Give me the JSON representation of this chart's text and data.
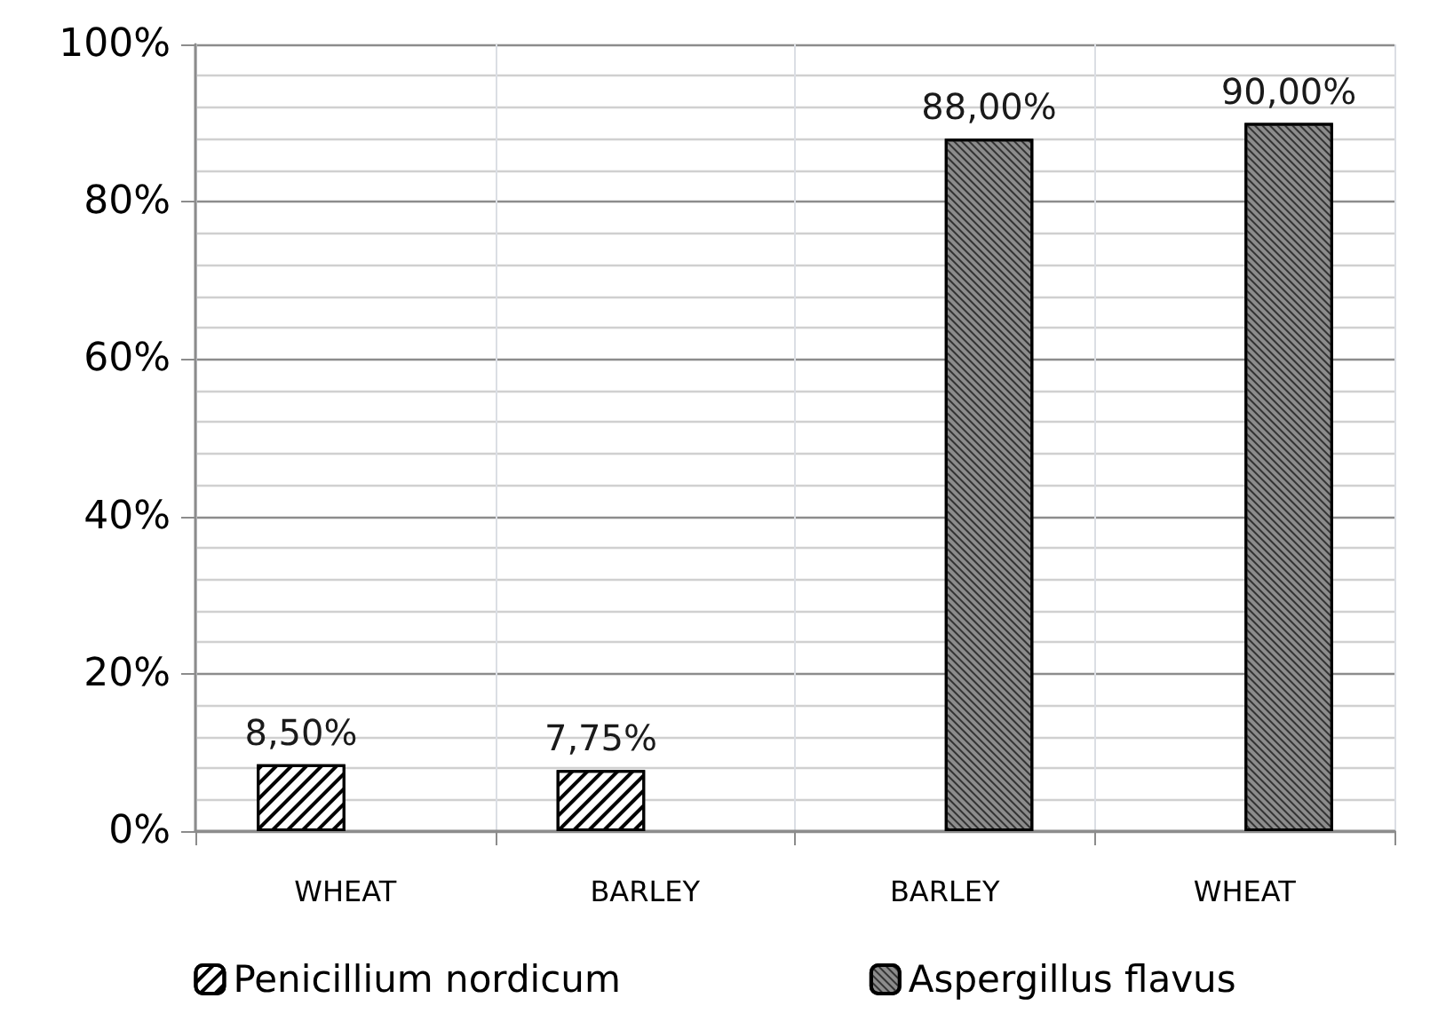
{
  "chart_data": {
    "type": "bar",
    "categories": [
      "WHEAT",
      "BARLEY",
      "BARLEY",
      "WHEAT"
    ],
    "series": [
      {
        "name": "Penicillium nordicum",
        "color": "#ffffff",
        "values": [
          8.5,
          7.75,
          null,
          null
        ],
        "value_labels": [
          "8,50%",
          "7,75%",
          null,
          null
        ]
      },
      {
        "name": "Aspergillus flavus",
        "color": "#8c8c8c",
        "values": [
          null,
          null,
          88,
          90
        ],
        "value_labels": [
          null,
          null,
          "88,00%",
          "90,00%"
        ]
      }
    ],
    "ylim": [
      0,
      100
    ],
    "yticks": [
      {
        "value": 0,
        "label": "0%"
      },
      {
        "value": 20,
        "label": "20%"
      },
      {
        "value": 40,
        "label": "40%"
      },
      {
        "value": 60,
        "label": "60%"
      },
      {
        "value": 80,
        "label": "80%"
      },
      {
        "value": 100,
        "label": "100%"
      }
    ],
    "grid": true,
    "legend": "bottom"
  }
}
